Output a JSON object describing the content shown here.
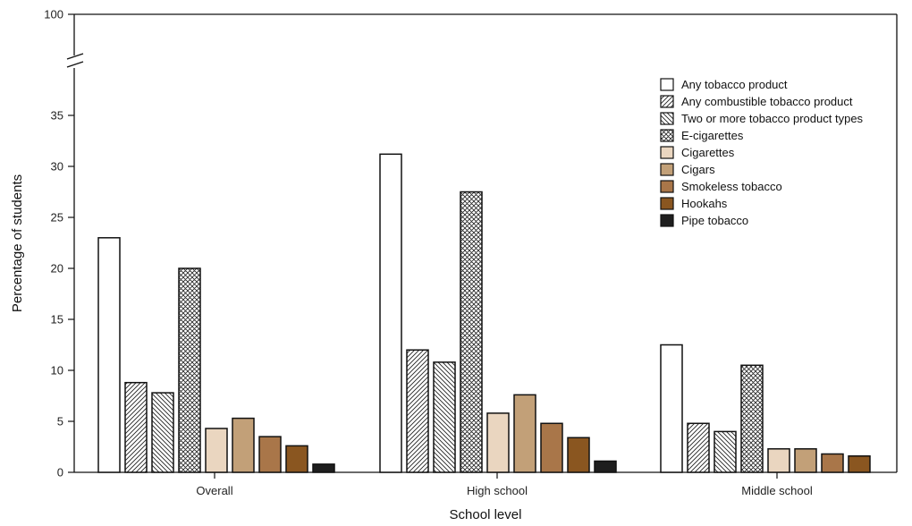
{
  "chart_data": {
    "type": "bar",
    "categories": [
      "Overall",
      "High school",
      "Middle school"
    ],
    "xlabel": "School level",
    "ylabel": "Percentage  of students",
    "ylim": [
      0,
      35
    ],
    "y_ticks": [
      "0",
      "5",
      "10",
      "15",
      "20",
      "25",
      "30",
      "35"
    ],
    "y_break_top_tick": "100",
    "axis_break": true,
    "grid": false,
    "legend_position": "top-right",
    "series": [
      {
        "name": "Any tobacco product",
        "values": [
          23.0,
          31.2,
          12.5
        ],
        "color": "#ffffff",
        "pattern": "none"
      },
      {
        "name": "Any combustible tobacco product",
        "values": [
          8.8,
          12.0,
          4.8
        ],
        "color": "#ffffff",
        "pattern": "hatch-forward"
      },
      {
        "name": "Two or more tobacco product types",
        "values": [
          7.8,
          10.8,
          4.0
        ],
        "color": "#ffffff",
        "pattern": "hatch-back"
      },
      {
        "name": "E-cigarettes",
        "values": [
          20.0,
          27.5,
          10.5
        ],
        "color": "#ffffff",
        "pattern": "crosshatch"
      },
      {
        "name": "Cigarettes",
        "values": [
          4.3,
          5.8,
          2.3
        ],
        "color": "#ead6c0",
        "pattern": "none"
      },
      {
        "name": "Cigars",
        "values": [
          5.3,
          7.6,
          2.3
        ],
        "color": "#c2a078",
        "pattern": "none"
      },
      {
        "name": "Smokeless tobacco",
        "values": [
          3.5,
          4.8,
          1.8
        ],
        "color": "#a97649",
        "pattern": "none"
      },
      {
        "name": "Hookahs",
        "values": [
          2.6,
          3.4,
          1.6
        ],
        "color": "#8a5620",
        "pattern": "none"
      },
      {
        "name": "Pipe tobacco",
        "values": [
          0.8,
          1.1,
          null
        ],
        "color": "#1e1e1e",
        "pattern": "none"
      }
    ]
  }
}
